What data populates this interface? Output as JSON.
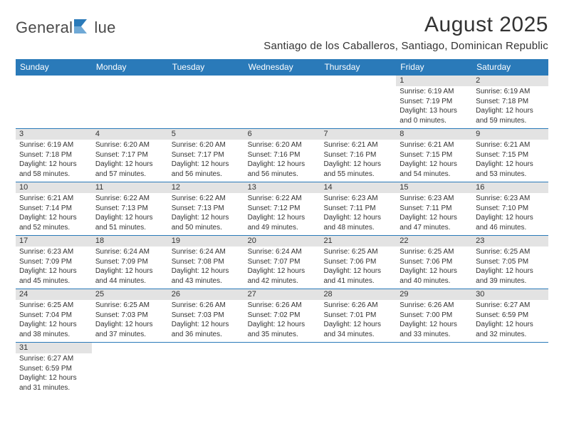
{
  "logo": {
    "text_left": "General",
    "text_right": "lue",
    "flag_color": "#2a7ab9"
  },
  "header": {
    "month_title": "August 2025",
    "location": "Santiago de los Caballeros, Santiago, Dominican Republic"
  },
  "styling": {
    "header_bg": "#2a7ab9",
    "header_text": "#ffffff",
    "daynum_bg": "#e3e3e3",
    "row_divider": "#2a7ab9",
    "body_text": "#333333",
    "page_bg": "#ffffff",
    "weekday_fontsize": 12,
    "daynum_fontsize": 11,
    "cell_fontsize": 10,
    "title_fontsize": 30,
    "location_fontsize": 15
  },
  "weekdays": [
    "Sunday",
    "Monday",
    "Tuesday",
    "Wednesday",
    "Thursday",
    "Friday",
    "Saturday"
  ],
  "weeks": [
    [
      null,
      null,
      null,
      null,
      null,
      {
        "d": "1",
        "sr": "6:19 AM",
        "ss": "7:19 PM",
        "dl": "13 hours and 0 minutes."
      },
      {
        "d": "2",
        "sr": "6:19 AM",
        "ss": "7:18 PM",
        "dl": "12 hours and 59 minutes."
      }
    ],
    [
      {
        "d": "3",
        "sr": "6:19 AM",
        "ss": "7:18 PM",
        "dl": "12 hours and 58 minutes."
      },
      {
        "d": "4",
        "sr": "6:20 AM",
        "ss": "7:17 PM",
        "dl": "12 hours and 57 minutes."
      },
      {
        "d": "5",
        "sr": "6:20 AM",
        "ss": "7:17 PM",
        "dl": "12 hours and 56 minutes."
      },
      {
        "d": "6",
        "sr": "6:20 AM",
        "ss": "7:16 PM",
        "dl": "12 hours and 56 minutes."
      },
      {
        "d": "7",
        "sr": "6:21 AM",
        "ss": "7:16 PM",
        "dl": "12 hours and 55 minutes."
      },
      {
        "d": "8",
        "sr": "6:21 AM",
        "ss": "7:15 PM",
        "dl": "12 hours and 54 minutes."
      },
      {
        "d": "9",
        "sr": "6:21 AM",
        "ss": "7:15 PM",
        "dl": "12 hours and 53 minutes."
      }
    ],
    [
      {
        "d": "10",
        "sr": "6:21 AM",
        "ss": "7:14 PM",
        "dl": "12 hours and 52 minutes."
      },
      {
        "d": "11",
        "sr": "6:22 AM",
        "ss": "7:13 PM",
        "dl": "12 hours and 51 minutes."
      },
      {
        "d": "12",
        "sr": "6:22 AM",
        "ss": "7:13 PM",
        "dl": "12 hours and 50 minutes."
      },
      {
        "d": "13",
        "sr": "6:22 AM",
        "ss": "7:12 PM",
        "dl": "12 hours and 49 minutes."
      },
      {
        "d": "14",
        "sr": "6:23 AM",
        "ss": "7:11 PM",
        "dl": "12 hours and 48 minutes."
      },
      {
        "d": "15",
        "sr": "6:23 AM",
        "ss": "7:11 PM",
        "dl": "12 hours and 47 minutes."
      },
      {
        "d": "16",
        "sr": "6:23 AM",
        "ss": "7:10 PM",
        "dl": "12 hours and 46 minutes."
      }
    ],
    [
      {
        "d": "17",
        "sr": "6:23 AM",
        "ss": "7:09 PM",
        "dl": "12 hours and 45 minutes."
      },
      {
        "d": "18",
        "sr": "6:24 AM",
        "ss": "7:09 PM",
        "dl": "12 hours and 44 minutes."
      },
      {
        "d": "19",
        "sr": "6:24 AM",
        "ss": "7:08 PM",
        "dl": "12 hours and 43 minutes."
      },
      {
        "d": "20",
        "sr": "6:24 AM",
        "ss": "7:07 PM",
        "dl": "12 hours and 42 minutes."
      },
      {
        "d": "21",
        "sr": "6:25 AM",
        "ss": "7:06 PM",
        "dl": "12 hours and 41 minutes."
      },
      {
        "d": "22",
        "sr": "6:25 AM",
        "ss": "7:06 PM",
        "dl": "12 hours and 40 minutes."
      },
      {
        "d": "23",
        "sr": "6:25 AM",
        "ss": "7:05 PM",
        "dl": "12 hours and 39 minutes."
      }
    ],
    [
      {
        "d": "24",
        "sr": "6:25 AM",
        "ss": "7:04 PM",
        "dl": "12 hours and 38 minutes."
      },
      {
        "d": "25",
        "sr": "6:25 AM",
        "ss": "7:03 PM",
        "dl": "12 hours and 37 minutes."
      },
      {
        "d": "26",
        "sr": "6:26 AM",
        "ss": "7:03 PM",
        "dl": "12 hours and 36 minutes."
      },
      {
        "d": "27",
        "sr": "6:26 AM",
        "ss": "7:02 PM",
        "dl": "12 hours and 35 minutes."
      },
      {
        "d": "28",
        "sr": "6:26 AM",
        "ss": "7:01 PM",
        "dl": "12 hours and 34 minutes."
      },
      {
        "d": "29",
        "sr": "6:26 AM",
        "ss": "7:00 PM",
        "dl": "12 hours and 33 minutes."
      },
      {
        "d": "30",
        "sr": "6:27 AM",
        "ss": "6:59 PM",
        "dl": "12 hours and 32 minutes."
      }
    ],
    [
      {
        "d": "31",
        "sr": "6:27 AM",
        "ss": "6:59 PM",
        "dl": "12 hours and 31 minutes."
      },
      null,
      null,
      null,
      null,
      null,
      null
    ]
  ],
  "labels": {
    "sunrise_prefix": "Sunrise: ",
    "sunset_prefix": "Sunset: ",
    "daylight_prefix": "Daylight: "
  }
}
